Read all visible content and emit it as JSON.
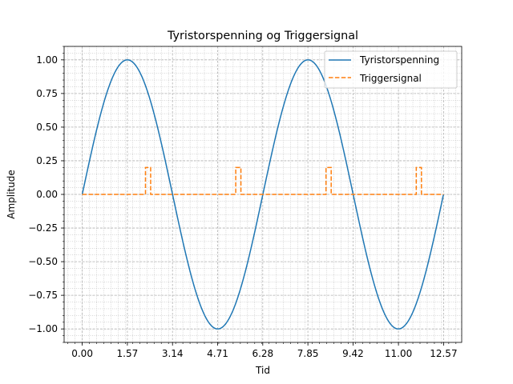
{
  "chart_data": {
    "type": "line",
    "title": "Tyristorspenning og Triggersignal",
    "xlabel": "Tid",
    "ylabel": "Amplitude",
    "xlim": [
      -0.63,
      13.2
    ],
    "ylim": [
      -1.1,
      1.1
    ],
    "xticks": [
      0,
      1.57,
      3.14,
      4.71,
      6.28,
      7.85,
      9.42,
      11.0,
      12.57
    ],
    "xtick_labels": [
      "0.00",
      "1.57",
      "3.14",
      "4.71",
      "6.28",
      "7.85",
      "9.42",
      "11.00",
      "12.57"
    ],
    "yticks": [
      -1.0,
      -0.75,
      -0.5,
      -0.25,
      0.0,
      0.25,
      0.5,
      0.75,
      1.0
    ],
    "ytick_labels": [
      "−1.00",
      "−0.75",
      "−0.50",
      "−0.25",
      "0.00",
      "0.25",
      "0.50",
      "0.75",
      "1.00"
    ],
    "grid": true,
    "minor_grid": true,
    "legend_position": "top-right",
    "series": [
      {
        "name": "Tyristorspenning",
        "style": "solid",
        "color": "#1f77b4",
        "function": "sin",
        "x_range": [
          0,
          12.566
        ]
      },
      {
        "name": "Triggersignal",
        "style": "dashed",
        "color": "#ff7f0e",
        "baseline": 0.0,
        "pulse_height": 0.2,
        "pulses": [
          [
            2.2,
            2.38
          ],
          [
            5.34,
            5.52
          ],
          [
            8.48,
            8.66
          ],
          [
            11.62,
            11.8
          ]
        ],
        "x_range": [
          0,
          12.566
        ]
      }
    ]
  }
}
